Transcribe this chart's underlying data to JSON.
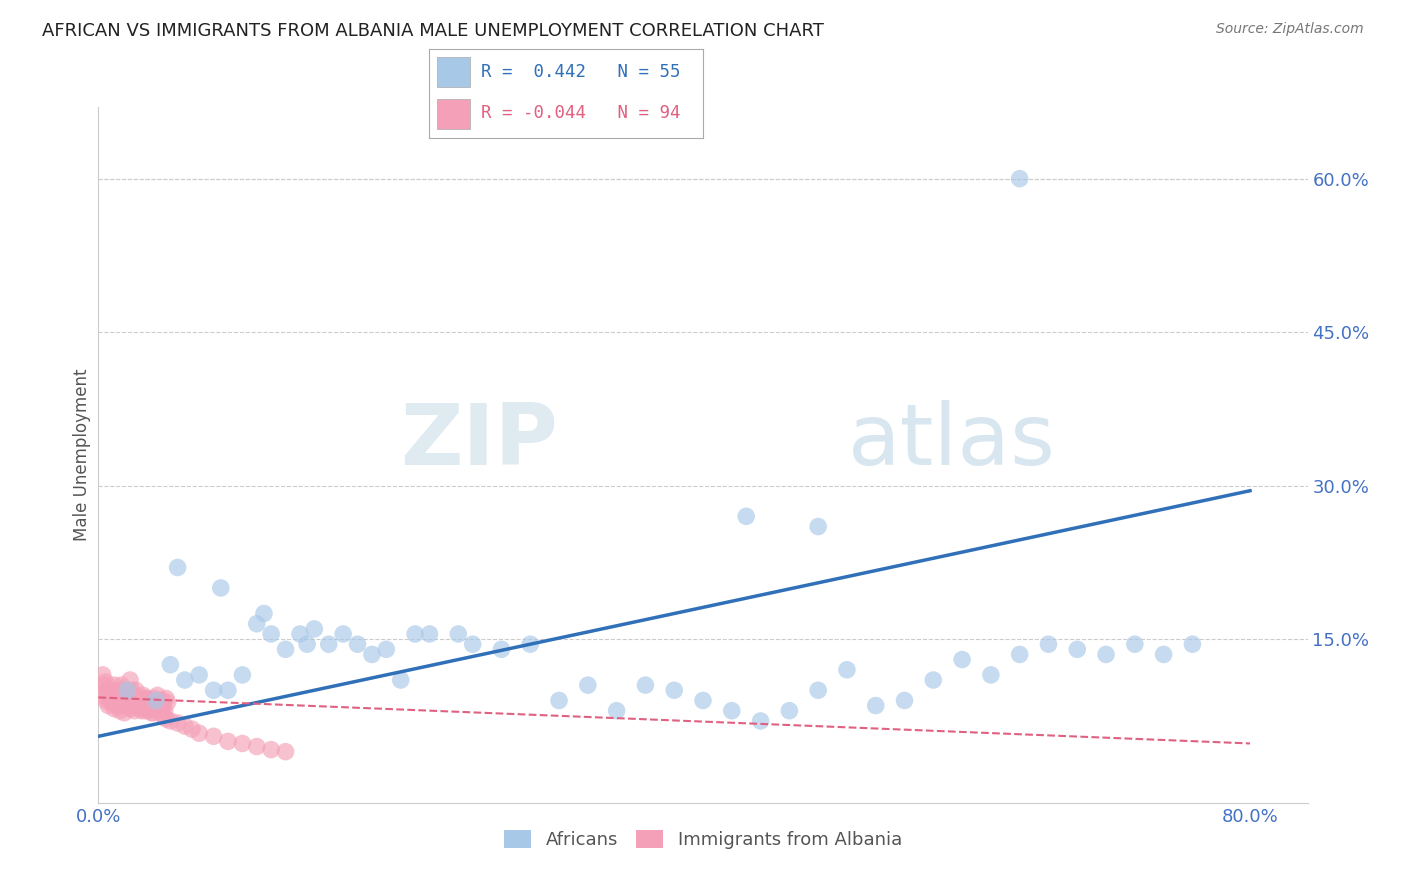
{
  "title": "AFRICAN VS IMMIGRANTS FROM ALBANIA MALE UNEMPLOYMENT CORRELATION CHART",
  "source": "Source: ZipAtlas.com",
  "ylabel": "Male Unemployment",
  "yticks": [
    0.0,
    0.15,
    0.3,
    0.45,
    0.6
  ],
  "ytick_labels": [
    "",
    "15.0%",
    "30.0%",
    "45.0%",
    "60.0%"
  ],
  "xlim": [
    0.0,
    0.84
  ],
  "ylim": [
    -0.01,
    0.67
  ],
  "watermark_zip": "ZIP",
  "watermark_atlas": "atlas",
  "blue_color": "#a8c8e8",
  "pink_color": "#f4a0b8",
  "blue_line_color": "#3070b8",
  "pink_line_color": "#e06080",
  "title_color": "#222222",
  "axis_label_color": "#4472C4",
  "grid_color": "#cccccc",
  "africans_x": [
    0.02,
    0.04,
    0.05,
    0.06,
    0.055,
    0.07,
    0.08,
    0.085,
    0.09,
    0.1,
    0.11,
    0.115,
    0.12,
    0.13,
    0.14,
    0.145,
    0.15,
    0.16,
    0.17,
    0.18,
    0.19,
    0.2,
    0.21,
    0.22,
    0.23,
    0.25,
    0.26,
    0.28,
    0.3,
    0.32,
    0.34,
    0.36,
    0.38,
    0.4,
    0.42,
    0.44,
    0.46,
    0.48,
    0.5,
    0.52,
    0.54,
    0.56,
    0.58,
    0.6,
    0.62,
    0.64,
    0.66,
    0.68,
    0.7,
    0.72,
    0.74,
    0.76,
    0.45,
    0.5,
    0.64
  ],
  "africans_y": [
    0.1,
    0.09,
    0.125,
    0.11,
    0.22,
    0.115,
    0.1,
    0.2,
    0.1,
    0.115,
    0.165,
    0.175,
    0.155,
    0.14,
    0.155,
    0.145,
    0.16,
    0.145,
    0.155,
    0.145,
    0.135,
    0.14,
    0.11,
    0.155,
    0.155,
    0.155,
    0.145,
    0.14,
    0.145,
    0.09,
    0.105,
    0.08,
    0.105,
    0.1,
    0.09,
    0.08,
    0.07,
    0.08,
    0.1,
    0.12,
    0.085,
    0.09,
    0.11,
    0.13,
    0.115,
    0.135,
    0.145,
    0.14,
    0.135,
    0.145,
    0.135,
    0.145,
    0.27,
    0.26,
    0.6
  ],
  "albania_x": [
    0.003,
    0.005,
    0.006,
    0.007,
    0.008,
    0.009,
    0.01,
    0.011,
    0.012,
    0.013,
    0.014,
    0.015,
    0.016,
    0.017,
    0.018,
    0.019,
    0.02,
    0.021,
    0.022,
    0.023,
    0.024,
    0.025,
    0.026,
    0.027,
    0.028,
    0.029,
    0.03,
    0.031,
    0.032,
    0.033,
    0.034,
    0.035,
    0.036,
    0.037,
    0.038,
    0.039,
    0.04,
    0.041,
    0.042,
    0.043,
    0.044,
    0.045,
    0.046,
    0.047,
    0.048,
    0.004,
    0.006,
    0.008,
    0.01,
    0.012,
    0.014,
    0.016,
    0.018,
    0.02,
    0.022,
    0.024,
    0.026,
    0.028,
    0.03,
    0.032,
    0.003,
    0.005,
    0.007,
    0.009,
    0.011,
    0.013,
    0.015,
    0.017,
    0.019,
    0.021,
    0.023,
    0.025,
    0.027,
    0.029,
    0.031,
    0.033,
    0.035,
    0.037,
    0.039,
    0.041,
    0.043,
    0.045,
    0.047,
    0.05,
    0.055,
    0.06,
    0.065,
    0.07,
    0.08,
    0.09,
    0.1,
    0.11,
    0.12,
    0.13
  ],
  "albania_y": [
    0.095,
    0.09,
    0.1,
    0.085,
    0.092,
    0.088,
    0.095,
    0.082,
    0.09,
    0.085,
    0.092,
    0.08,
    0.088,
    0.085,
    0.078,
    0.092,
    0.09,
    0.085,
    0.082,
    0.088,
    0.095,
    0.08,
    0.092,
    0.085,
    0.088,
    0.082,
    0.09,
    0.095,
    0.085,
    0.08,
    0.092,
    0.088,
    0.085,
    0.082,
    0.078,
    0.092,
    0.088,
    0.095,
    0.082,
    0.085,
    0.09,
    0.085,
    0.08,
    0.092,
    0.088,
    0.105,
    0.1,
    0.095,
    0.092,
    0.1,
    0.095,
    0.105,
    0.09,
    0.085,
    0.11,
    0.095,
    0.1,
    0.085,
    0.08,
    0.092,
    0.115,
    0.108,
    0.095,
    0.092,
    0.105,
    0.095,
    0.09,
    0.1,
    0.088,
    0.095,
    0.1,
    0.092,
    0.088,
    0.085,
    0.09,
    0.082,
    0.088,
    0.078,
    0.082,
    0.085,
    0.08,
    0.075,
    0.072,
    0.07,
    0.068,
    0.065,
    0.062,
    0.058,
    0.055,
    0.05,
    0.048,
    0.045,
    0.042,
    0.04
  ],
  "blue_line_x0": 0.0,
  "blue_line_y0": 0.055,
  "blue_line_x1": 0.8,
  "blue_line_y1": 0.295,
  "pink_line_x0": 0.0,
  "pink_line_y0": 0.093,
  "pink_line_x1": 0.8,
  "pink_line_y1": 0.048
}
